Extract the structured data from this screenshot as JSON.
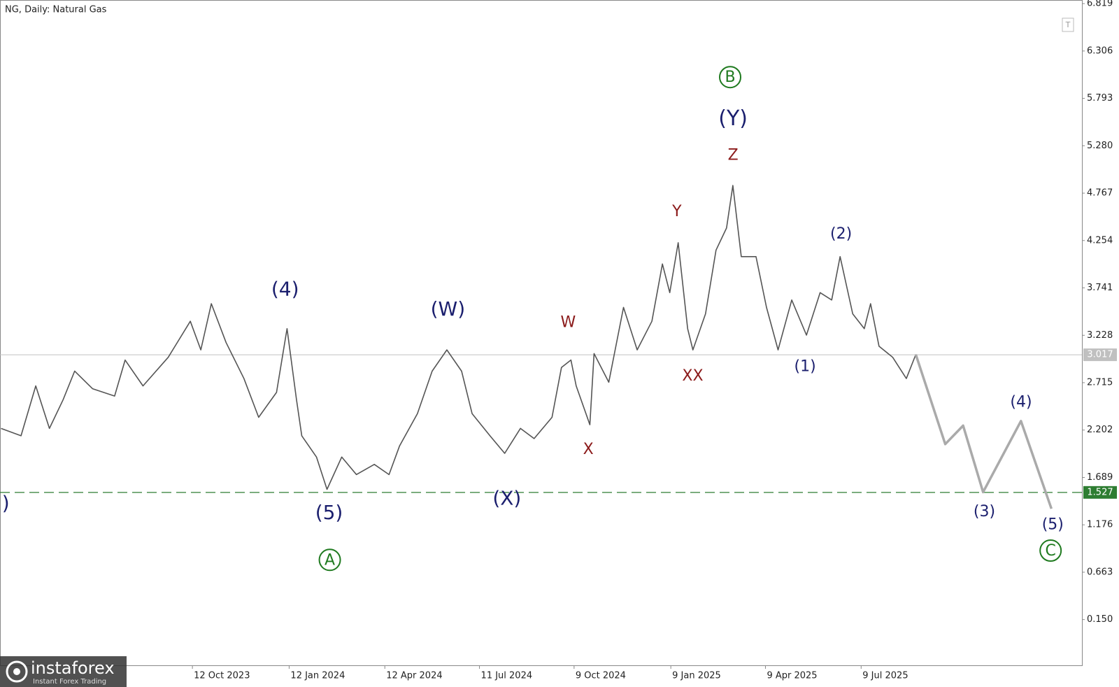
{
  "chart_data": {
    "type": "line",
    "title": "NG, Daily:  Natural Gas",
    "xlim": [
      "12 Apr 2023",
      "4 Feb 2026"
    ],
    "xticks": [
      "12 Oct 2023",
      "12 Jan 2024",
      "12 Apr 2024",
      "11 Jul 2024",
      "9 Oct 2024",
      "9 Jan 2025",
      "9 Apr 2025",
      "9 Jul 2025"
    ],
    "ylim": [
      -0.345,
      6.858
    ],
    "yticks": [
      {
        "value": 0.15,
        "label": "0.150"
      },
      0.663,
      1.176,
      1.689,
      2.202,
      2.715,
      3.228,
      3.741,
      4.254,
      4.767,
      {
        "value": 5.28,
        "label": "5.280"
      },
      5.793,
      6.306,
      6.819
    ],
    "series": [
      {
        "name": "Natural Gas",
        "color": "#555555",
        "x": [
          "13 Apr 2023",
          "2 May 2023",
          "16 May 2023",
          "29 May 2023",
          "11 Jun 2023",
          "22 Jun 2023",
          "9 Jul 2023",
          "30 Jul 2023",
          "9 Aug 2023",
          "26 Aug 2023",
          "19 Sep 2023",
          "10 Oct 2023",
          "20 Oct 2023",
          "30 Oct 2023",
          "13 Nov 2023",
          "30 Nov 2023",
          "14 Dec 2023",
          "31 Dec 2023",
          "10 Jan 2024",
          "19 Jan 2024",
          "24 Jan 2024",
          "7 Feb 2024",
          "17 Feb 2024",
          "2 Mar 2024",
          "16 Mar 2024",
          "2 Apr 2024",
          "16 Apr 2024",
          "26 Apr 2024",
          "13 May 2024",
          "27 May 2024",
          "10 Jun 2024",
          "24 Jun 2024",
          "4 Jul 2024",
          "21 Jul 2024",
          "4 Aug 2024",
          "19 Aug 2024",
          "1 Sep 2024",
          "18 Sep 2024",
          "27 Sep 2024",
          "6 Oct 2024",
          "11 Oct 2024",
          "24 Oct 2024",
          "28 Oct 2024",
          "11 Nov 2024",
          "25 Nov 2024",
          "8 Dec 2024",
          "22 Dec 2024",
          "1 Jan 2025",
          "8 Jan 2025",
          "16 Jan 2025",
          "25 Jan 2025",
          "30 Jan 2025",
          "11 Feb 2025",
          "21 Feb 2025",
          "3 Mar 2025",
          "9 Mar 2025",
          "17 Mar 2025",
          "31 Mar 2025",
          "10 Apr 2025",
          "21 Apr 2025",
          "4 May 2025",
          "18 May 2025",
          "31 May 2025",
          "11 Jun 2025",
          "19 Jun 2025",
          "1 Jul 2025",
          "12 Jul 2025",
          "18 Jul 2025",
          "26 Jul 2025",
          "8 Aug 2025",
          "21 Aug 2025",
          "30 Aug 2025"
        ],
        "values": [
          2.22,
          2.14,
          2.68,
          2.22,
          2.53,
          2.84,
          2.65,
          2.57,
          2.96,
          2.68,
          2.99,
          3.38,
          3.07,
          3.57,
          3.15,
          2.76,
          2.34,
          2.61,
          3.3,
          2.53,
          2.14,
          1.91,
          1.56,
          1.91,
          1.72,
          1.83,
          1.72,
          2.03,
          2.38,
          2.84,
          3.07,
          2.84,
          2.38,
          2.14,
          1.95,
          2.22,
          2.11,
          2.34,
          2.88,
          2.96,
          2.68,
          2.26,
          3.03,
          2.72,
          3.53,
          3.07,
          3.38,
          4.0,
          3.69,
          4.23,
          3.3,
          3.07,
          3.46,
          4.15,
          4.39,
          4.85,
          4.08,
          4.08,
          3.53,
          3.07,
          3.61,
          3.23,
          3.69,
          3.61,
          4.08,
          3.46,
          3.3,
          3.57,
          3.11,
          2.99,
          2.76,
          3.02
        ]
      },
      {
        "name": "Forecast",
        "color": "#aaaaaa",
        "x": [
          "30 Aug 2025",
          "27 Sep 2025",
          "14 Oct 2025",
          "2 Nov 2025",
          "8 Dec 2025",
          "6 Jan 2026"
        ],
        "values": [
          3.02,
          2.05,
          2.25,
          1.53,
          2.3,
          1.35
        ]
      }
    ],
    "levels": [
      {
        "value": 3.017,
        "color": "#c0c0c0",
        "style": "solid"
      },
      {
        "value": 1.527,
        "color": "#2e7d32",
        "style": "dashed"
      }
    ],
    "annotations": [
      {
        "text": ")",
        "color": "#1b1f6e",
        "circled": false
      },
      {
        "text": "(4)",
        "color": "#1b1f6e",
        "circled": false
      },
      {
        "text": "(5)",
        "color": "#1b1f6e",
        "circled": false
      },
      {
        "text": "A",
        "color": "#1f7a1f",
        "circled": true
      },
      {
        "text": "(W)",
        "color": "#1b1f6e",
        "circled": false
      },
      {
        "text": "(X)",
        "color": "#1b1f6e",
        "circled": false
      },
      {
        "text": "W",
        "color": "#8b1a1a",
        "circled": false
      },
      {
        "text": "X",
        "color": "#8b1a1a",
        "circled": false
      },
      {
        "text": "Y",
        "color": "#8b1a1a",
        "circled": false
      },
      {
        "text": "XX",
        "color": "#8b1a1a",
        "circled": false
      },
      {
        "text": "Z",
        "color": "#8b1a1a",
        "circled": false
      },
      {
        "text": "(Y)",
        "color": "#1b1f6e",
        "circled": false
      },
      {
        "text": "B",
        "color": "#1f7a1f",
        "circled": true
      },
      {
        "text": "(1)",
        "color": "#1b1f6e",
        "circled": false
      },
      {
        "text": "(2)",
        "color": "#1b1f6e",
        "circled": false
      },
      {
        "text": "(3)",
        "color": "#1b1f6e",
        "circled": false
      },
      {
        "text": "(4)",
        "color": "#1b1f6e",
        "circled": false
      },
      {
        "text": "(5)",
        "color": "#1b1f6e",
        "circled": false
      },
      {
        "text": "C",
        "color": "#1f7a1f",
        "circled": true
      }
    ]
  },
  "branding": {
    "name": "instaforex",
    "tagline": "Instant Forex Trading"
  }
}
